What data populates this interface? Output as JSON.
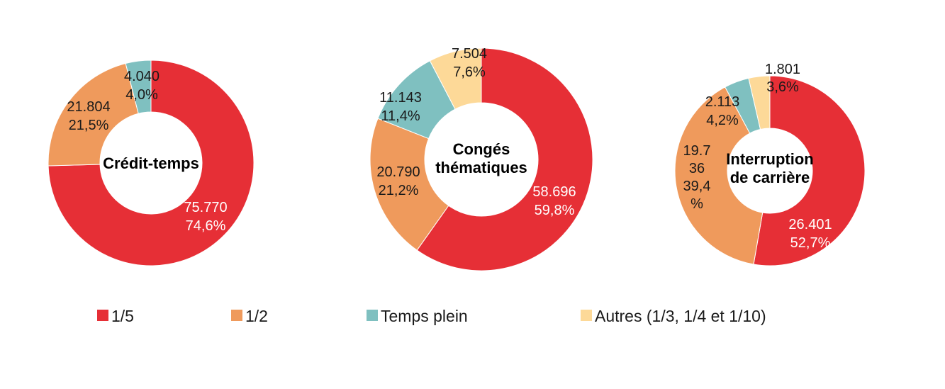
{
  "chart_data": [
    {
      "type": "pie",
      "center_title": [
        "Crédit-temps"
      ],
      "slices": [
        {
          "category": "1/5",
          "value": 75770,
          "label_lines": [
            "75.770",
            "74,6%"
          ]
        },
        {
          "category": "1/2",
          "value": 21804,
          "label_lines": [
            "21.804",
            "21,5%"
          ]
        },
        {
          "category": "Temps plein",
          "value": 4040,
          "label_lines": [
            "4.040",
            "4,0%"
          ]
        }
      ]
    },
    {
      "type": "pie",
      "center_title": [
        "Congés",
        "thématiques"
      ],
      "slices": [
        {
          "category": "1/5",
          "value": 58696,
          "label_lines": [
            "58.696",
            "59,8%"
          ]
        },
        {
          "category": "1/2",
          "value": 20790,
          "label_lines": [
            "20.790",
            "21,2%"
          ]
        },
        {
          "category": "Temps plein",
          "value": 11143,
          "label_lines": [
            "11.143",
            "11,4%"
          ]
        },
        {
          "category": "Autres (1/3, 1/4 et 1/10)",
          "value": 7504,
          "label_lines": [
            "7.504",
            "7,6%"
          ]
        }
      ]
    },
    {
      "type": "pie",
      "center_title": [
        "Interruption",
        "de carrière"
      ],
      "slices": [
        {
          "category": "1/5",
          "value": 26401,
          "label_lines": [
            "26.401",
            "52,7%"
          ]
        },
        {
          "category": "1/2",
          "value": 19736,
          "label_lines": [
            "19.7",
            "36",
            "39,4",
            "%"
          ]
        },
        {
          "category": "Temps plein",
          "value": 2113,
          "label_lines": [
            "2.113",
            "4,2%"
          ]
        },
        {
          "category": "Autres (1/3, 1/4 et 1/10)",
          "value": 1801,
          "label_lines": [
            "1.801",
            "3,6%"
          ]
        }
      ]
    }
  ],
  "legend": [
    {
      "label": "1/5",
      "color": "#e62f36"
    },
    {
      "label": "1/2",
      "color": "#ef9a5c"
    },
    {
      "label": "Temps plein",
      "color": "#7fc0c0"
    },
    {
      "label": "Autres (1/3, 1/4 et 1/10)",
      "color": "#fdd998"
    }
  ]
}
